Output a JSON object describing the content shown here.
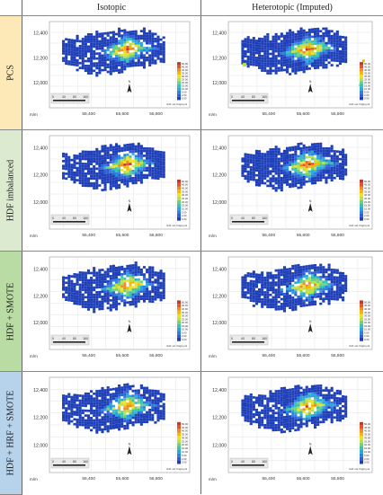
{
  "columns": [
    "Isotopic",
    "Heterotopic (Imputed)"
  ],
  "rows": [
    {
      "label": "PCS",
      "bg": "#fde9b8"
    },
    {
      "label": "HDF imbalanced",
      "bg": "#dcebd0"
    },
    {
      "label": "HDF + SMOTE",
      "bg": "#b8dca4"
    },
    {
      "label": "HDF + HRF + SMOTE",
      "bg": "#b7d3ec"
    }
  ],
  "map": {
    "y_ticks": [
      "12,400",
      "12,200",
      "12,000"
    ],
    "x_ticks": [
      "55,400",
      "55,600",
      "55,800"
    ],
    "units": "m/m",
    "scale_labels": [
      "0",
      "40",
      "80",
      "160"
    ],
    "colorbar_labels": [
      "50.00",
      "45.00",
      "40.00",
      "35.00",
      "30.00",
      "25.00",
      "20.00",
      "15.00",
      "10.00",
      "5.00",
      "2.00",
      "0.00"
    ],
    "colorbar_colors": [
      "#c0392b",
      "#e4572e",
      "#f08a24",
      "#f5b800",
      "#e8e22e",
      "#b9e04a",
      "#6fd07c",
      "#34c3b4",
      "#2aa5e0",
      "#2f7fe0",
      "#2f5ed6",
      "#1e3fb8"
    ],
    "credit": "Grid: est. Kriging ok",
    "north_symbol": "N"
  }
}
